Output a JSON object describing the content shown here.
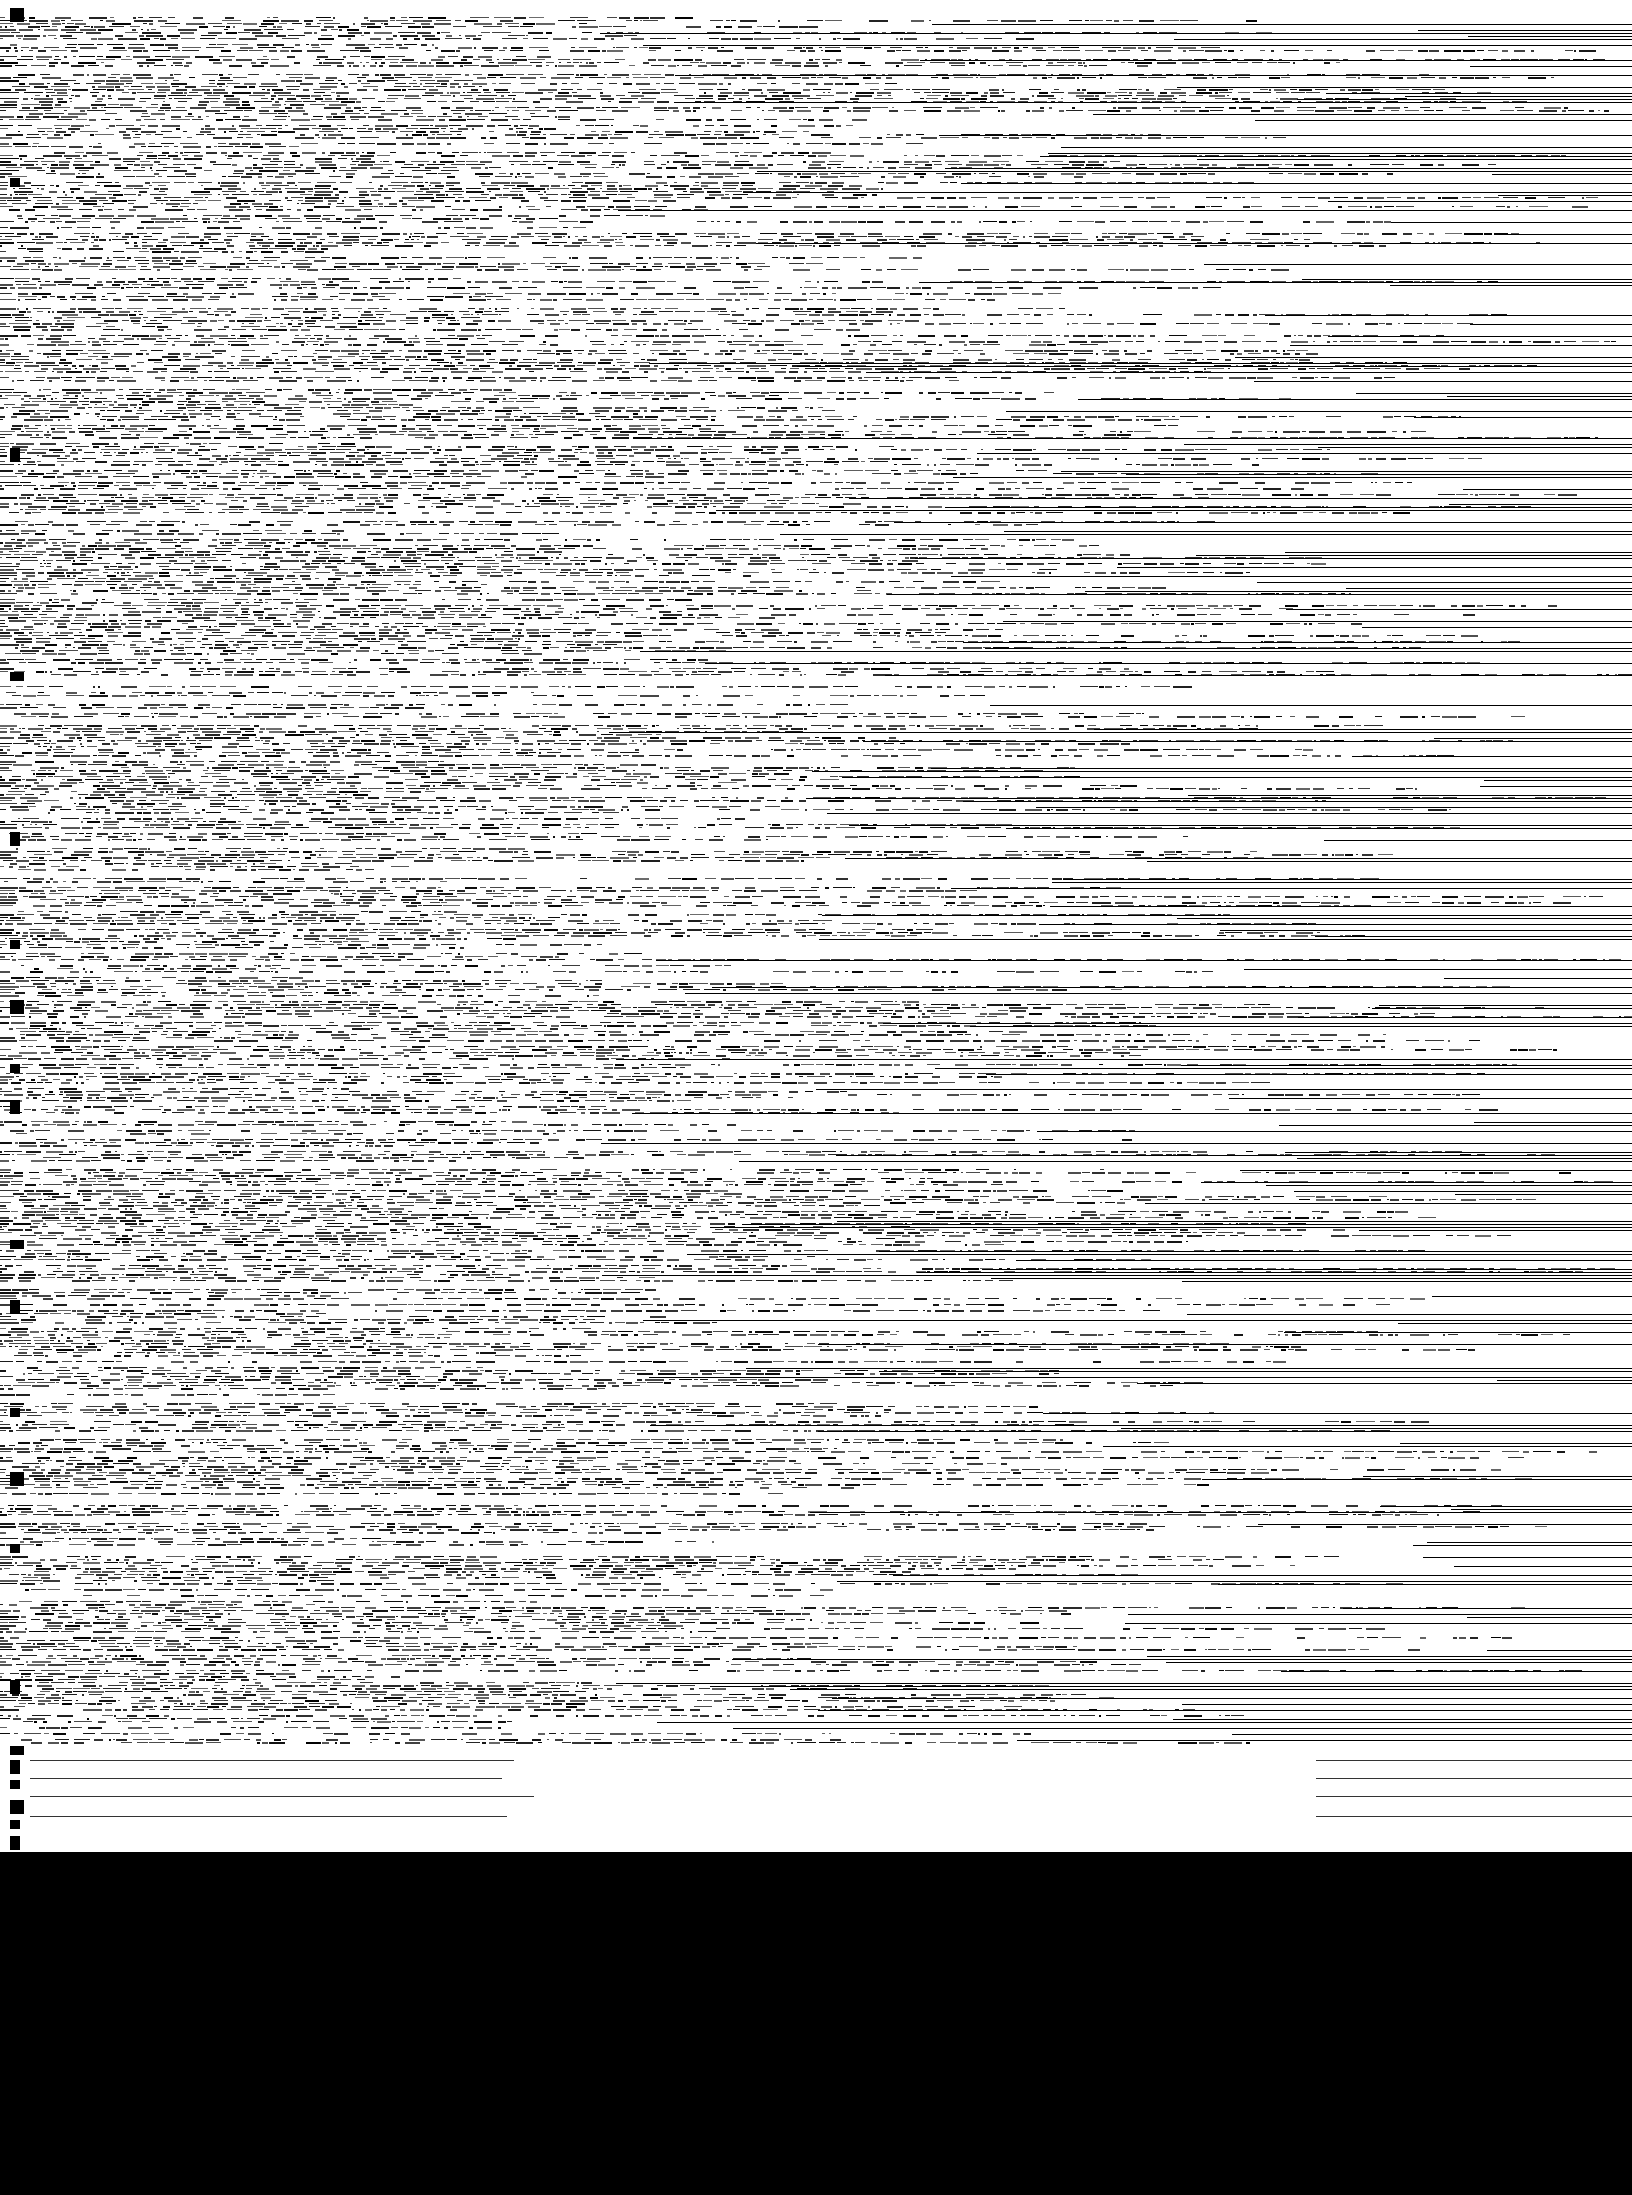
{
  "capture": {
    "background": "#ffffff",
    "ink": "#000000",
    "legible_text": "",
    "paragraph_count": 21
  },
  "lower_region": {
    "background": "#000000"
  }
}
